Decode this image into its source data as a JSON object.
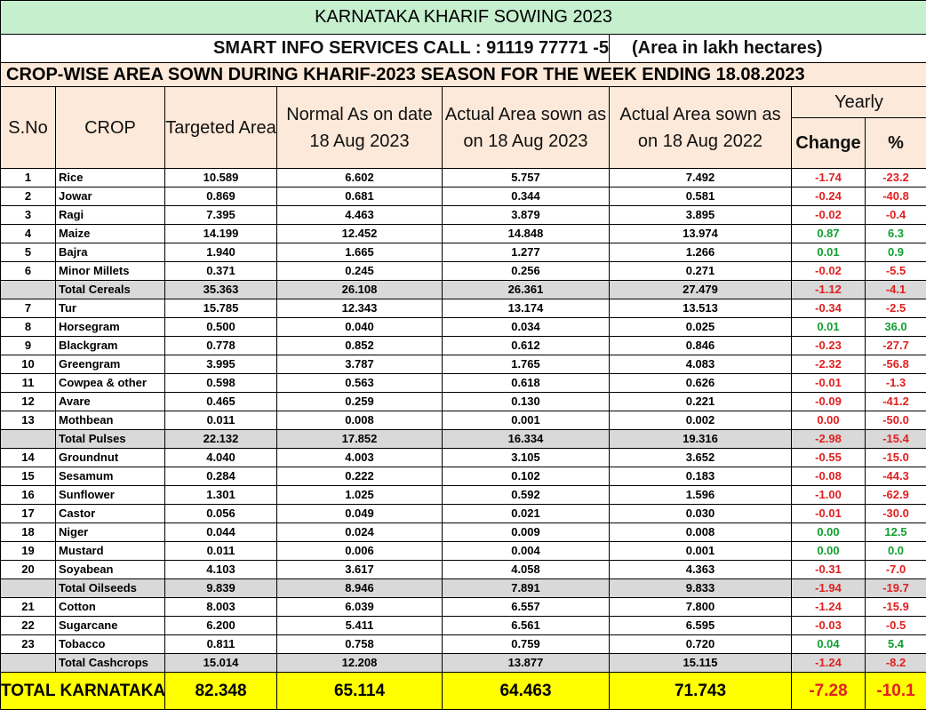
{
  "header": {
    "title": "KARNATAKA KHARIF SOWING 2023",
    "contact": "SMART INFO SERVICES CALL : 91119 77771 -5",
    "unit_note": "(Area in lakh hectares)",
    "subtitle": "CROP-WISE AREA SOWN DURING KHARIF-2023 SEASON FOR THE WEEK ENDING 18.08.2023"
  },
  "table": {
    "columns": [
      "S.No",
      "CROP",
      "Targeted Area",
      "Normal As on date 18 Aug 2023",
      "Actual Area sown as on 18 Aug 2023",
      "Actual Area sown as on 18 Aug 2022"
    ],
    "group": "Yearly",
    "group_columns": [
      "Change",
      "%"
    ],
    "rows": [
      {
        "cells": [
          "1",
          "Rice",
          "10.589",
          "6.602",
          "5.757",
          "7.492",
          "-1.74",
          "-23.2"
        ],
        "color": "#e02020"
      },
      {
        "cells": [
          "2",
          "Jowar",
          "0.869",
          "0.681",
          "0.344",
          "0.581",
          "-0.24",
          "-40.8"
        ],
        "color": "#e02020"
      },
      {
        "cells": [
          "3",
          "Ragi",
          "7.395",
          "4.463",
          "3.879",
          "3.895",
          "-0.02",
          "-0.4"
        ],
        "color": "#e02020"
      },
      {
        "cells": [
          "4",
          "Maize",
          "14.199",
          "12.452",
          "14.848",
          "13.974",
          "0.87",
          "6.3"
        ],
        "color": "#10a030"
      },
      {
        "cells": [
          "5",
          "Bajra",
          "1.940",
          "1.665",
          "1.277",
          "1.266",
          "0.01",
          "0.9"
        ],
        "color": "#10a030"
      },
      {
        "cells": [
          "6",
          "Minor Millets",
          "0.371",
          "0.245",
          "0.256",
          "0.271",
          "-0.02",
          "-5.5"
        ],
        "color": "#e02020"
      },
      {
        "cells": [
          null,
          "Total Cereals",
          "35.363",
          "26.108",
          "26.361",
          "27.479",
          "-1.12",
          "-4.1"
        ],
        "color": "#e02020",
        "shaded": true
      },
      {
        "cells": [
          "7",
          "Tur",
          "15.785",
          "12.343",
          "13.174",
          "13.513",
          "-0.34",
          "-2.5"
        ],
        "color": "#e02020"
      },
      {
        "cells": [
          "8",
          "Horsegram",
          "0.500",
          "0.040",
          "0.034",
          "0.025",
          "0.01",
          "36.0"
        ],
        "color": "#10a030"
      },
      {
        "cells": [
          "9",
          "Blackgram",
          "0.778",
          "0.852",
          "0.612",
          "0.846",
          "-0.23",
          "-27.7"
        ],
        "color": "#e02020"
      },
      {
        "cells": [
          "10",
          "Greengram",
          "3.995",
          "3.787",
          "1.765",
          "4.083",
          "-2.32",
          "-56.8"
        ],
        "color": "#e02020"
      },
      {
        "cells": [
          "11",
          "Cowpea & other",
          "0.598",
          "0.563",
          "0.618",
          "0.626",
          "-0.01",
          "-1.3"
        ],
        "color": "#e02020"
      },
      {
        "cells": [
          "12",
          "Avare",
          "0.465",
          "0.259",
          "0.130",
          "0.221",
          "-0.09",
          "-41.2"
        ],
        "color": "#e02020"
      },
      {
        "cells": [
          "13",
          "Mothbean",
          "0.011",
          "0.008",
          "0.001",
          "0.002",
          "0.00",
          "-50.0"
        ],
        "color": "#e02020"
      },
      {
        "cells": [
          null,
          "Total Pulses",
          "22.132",
          "17.852",
          "16.334",
          "19.316",
          "-2.98",
          "-15.4"
        ],
        "color": "#e02020",
        "shaded": true
      },
      {
        "cells": [
          "14",
          "Groundnut",
          "4.040",
          "4.003",
          "3.105",
          "3.652",
          "-0.55",
          "-15.0"
        ],
        "color": "#e02020"
      },
      {
        "cells": [
          "15",
          "Sesamum",
          "0.284",
          "0.222",
          "0.102",
          "0.183",
          "-0.08",
          "-44.3"
        ],
        "color": "#e02020"
      },
      {
        "cells": [
          "16",
          "Sunflower",
          "1.301",
          "1.025",
          "0.592",
          "1.596",
          "-1.00",
          "-62.9"
        ],
        "color": "#e02020"
      },
      {
        "cells": [
          "17",
          "Castor",
          "0.056",
          "0.049",
          "0.021",
          "0.030",
          "-0.01",
          "-30.0"
        ],
        "color": "#e02020"
      },
      {
        "cells": [
          "18",
          "Niger",
          "0.044",
          "0.024",
          "0.009",
          "0.008",
          "0.00",
          "12.5"
        ],
        "color": "#10a030"
      },
      {
        "cells": [
          "19",
          "Mustard",
          "0.011",
          "0.006",
          "0.004",
          "0.001",
          "0.00",
          "0.0"
        ],
        "color": "#10a030"
      },
      {
        "cells": [
          "20",
          "Soyabean",
          "4.103",
          "3.617",
          "4.058",
          "4.363",
          "-0.31",
          "-7.0"
        ],
        "color": "#e02020"
      },
      {
        "cells": [
          null,
          "Total Oilseeds",
          "9.839",
          "8.946",
          "7.891",
          "9.833",
          "-1.94",
          "-19.7"
        ],
        "color": "#e02020",
        "shaded": true
      },
      {
        "cells": [
          "21",
          "Cotton",
          "8.003",
          "6.039",
          "6.557",
          "7.800",
          "-1.24",
          "-15.9"
        ],
        "color": "#e02020"
      },
      {
        "cells": [
          "22",
          "Sugarcane",
          "6.200",
          "5.411",
          "6.561",
          "6.595",
          "-0.03",
          "-0.5"
        ],
        "color": "#e02020"
      },
      {
        "cells": [
          "23",
          "Tobacco",
          "0.811",
          "0.758",
          "0.759",
          "0.720",
          "0.04",
          "5.4"
        ],
        "color": "#10a030"
      },
      {
        "cells": [
          null,
          "Total Cashcrops",
          "15.014",
          "12.208",
          "13.877",
          "15.115",
          "-1.24",
          "-8.2"
        ],
        "color": "#e02020",
        "shaded": true
      }
    ],
    "total": {
      "label": "TOTAL KARNATAKA",
      "cells": [
        "82.348",
        "65.114",
        "64.463",
        "71.743",
        "-7.28",
        "-10.1"
      ],
      "color": "#e02020"
    }
  }
}
